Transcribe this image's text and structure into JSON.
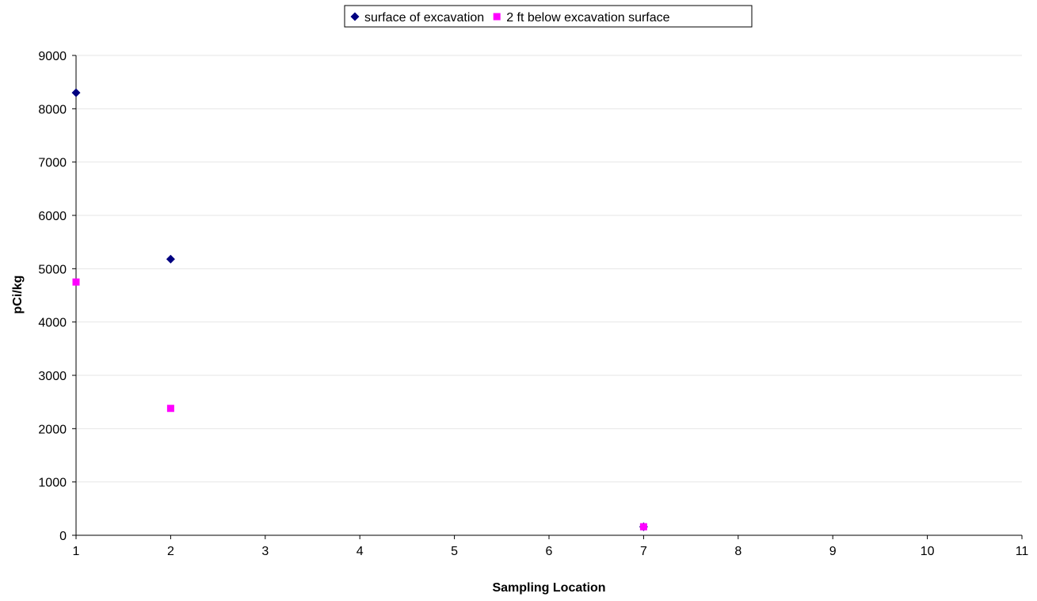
{
  "chart_data": {
    "type": "scatter",
    "xlabel": "Sampling Location",
    "ylabel": "pCi/kg",
    "xlim": [
      1,
      11
    ],
    "ylim": [
      0,
      9000
    ],
    "x_ticks": [
      "1",
      "2",
      "3",
      "4",
      "5",
      "6",
      "7",
      "8",
      "9",
      "10",
      "11"
    ],
    "y_ticks": [
      "0",
      "1000",
      "2000",
      "3000",
      "4000",
      "5000",
      "6000",
      "7000",
      "8000",
      "9000"
    ],
    "grid": "horizontal",
    "legend_position": "top",
    "series": [
      {
        "name": "surface of excavation",
        "marker": "diamond",
        "color": "#000080",
        "points": [
          {
            "x": 1,
            "y": 8300
          },
          {
            "x": 2,
            "y": 5180
          },
          {
            "x": 7,
            "y": 160
          }
        ]
      },
      {
        "name": "2 ft below excavation surface",
        "marker": "square",
        "color": "#ff00ff",
        "points": [
          {
            "x": 1,
            "y": 4750
          },
          {
            "x": 2,
            "y": 2380
          },
          {
            "x": 7,
            "y": 160
          }
        ]
      }
    ]
  }
}
